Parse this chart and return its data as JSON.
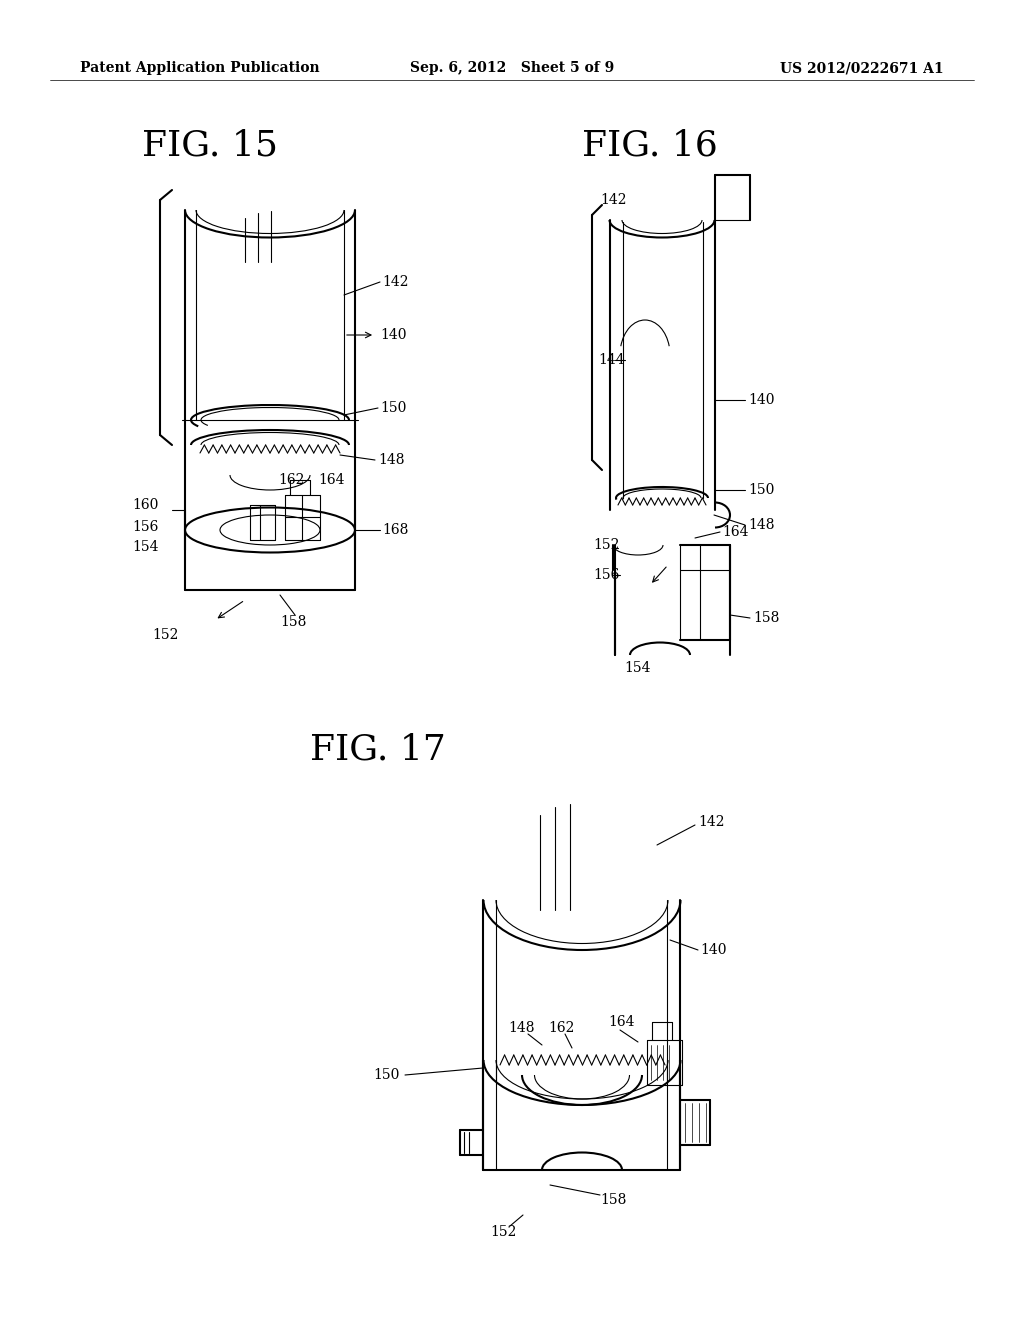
{
  "background_color": "#ffffff",
  "header_left": "Patent Application Publication",
  "header_center": "Sep. 6, 2012   Sheet 5 of 9",
  "header_right": "US 2012/0222671 A1",
  "line_color": "#000000",
  "lw_main": 1.5,
  "lw_thin": 0.8,
  "lw_med": 1.1,
  "fig15_label": "FIG. 15",
  "fig16_label": "FIG. 16",
  "fig17_label": "FIG. 17",
  "label_fontsize": 10,
  "fig_label_fontsize": 26,
  "header_fontsize": 10
}
